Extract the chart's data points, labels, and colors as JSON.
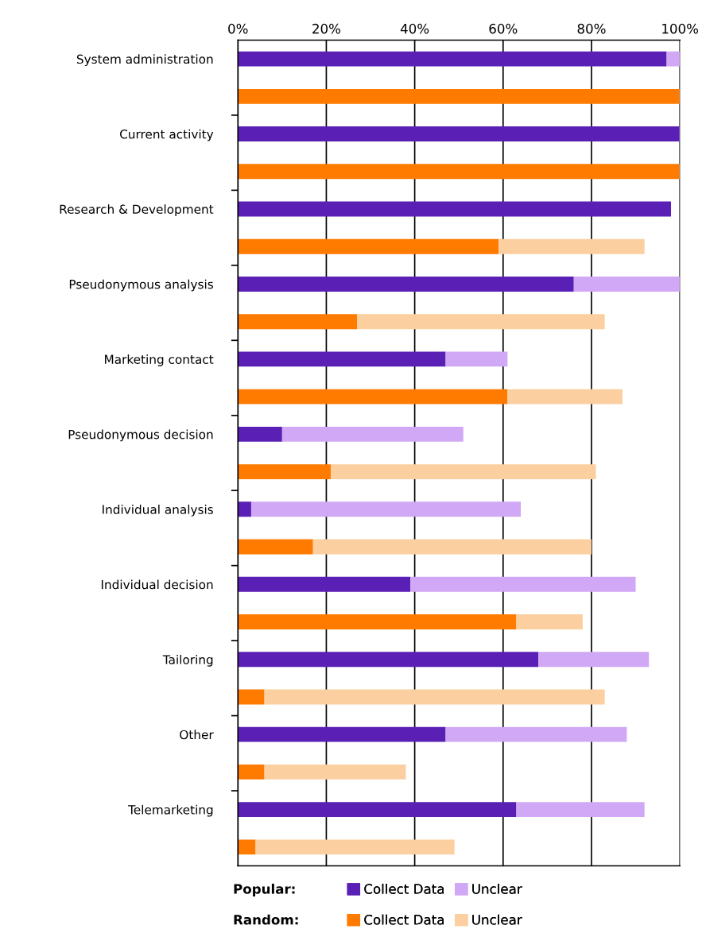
{
  "chart_data": {
    "type": "bar",
    "orientation": "horizontal",
    "stacked": true,
    "categories": [
      "System administration",
      null,
      "Current activity",
      null,
      "Research & Development",
      null,
      "Pseudonymous analysis",
      null,
      "Marketing contact",
      null,
      "Pseudonymous decision",
      null,
      "Individual analysis",
      null,
      "Individual decision",
      null,
      "Tailoring",
      null,
      "Other",
      null,
      "Telemarketing",
      null
    ],
    "series": [
      {
        "name": "Collect Data",
        "color": "#5a1fb5",
        "values": [
          97,
          null,
          100,
          null,
          98,
          null,
          76,
          null,
          47,
          null,
          10,
          null,
          3,
          null,
          39,
          null,
          68,
          null,
          47,
          null,
          63,
          null
        ]
      },
      {
        "name": "Unclear",
        "color": "#d0a8f5",
        "values": [
          3,
          null,
          0,
          null,
          0,
          null,
          24,
          null,
          14,
          null,
          41,
          null,
          61,
          null,
          51,
          null,
          25,
          null,
          41,
          null,
          29,
          null
        ]
      },
      {
        "name": "Collect Data",
        "color": "#ff7b00",
        "values": [
          null,
          100,
          null,
          100,
          null,
          59,
          null,
          27,
          null,
          61,
          null,
          21,
          null,
          17,
          null,
          63,
          null,
          6,
          null,
          6,
          null,
          4
        ]
      },
      {
        "name": "Unclear",
        "color": "#fccfa0",
        "values": [
          null,
          0,
          null,
          0,
          null,
          33,
          null,
          56,
          null,
          26,
          null,
          60,
          null,
          63,
          null,
          15,
          null,
          77,
          null,
          32,
          null,
          45
        ]
      }
    ],
    "xlim": [
      0,
      100
    ],
    "xticks": [
      {
        "value": 0,
        "label": "0%"
      },
      {
        "value": 20,
        "label": "20%"
      },
      {
        "value": 40,
        "label": "40%"
      },
      {
        "value": 60,
        "label": "60%"
      },
      {
        "value": 80,
        "label": "80%"
      },
      {
        "value": 100,
        "label": "100%"
      }
    ],
    "grid": "x",
    "legend": "bottom",
    "annotations": [
      "Popular:",
      "Random:"
    ]
  }
}
